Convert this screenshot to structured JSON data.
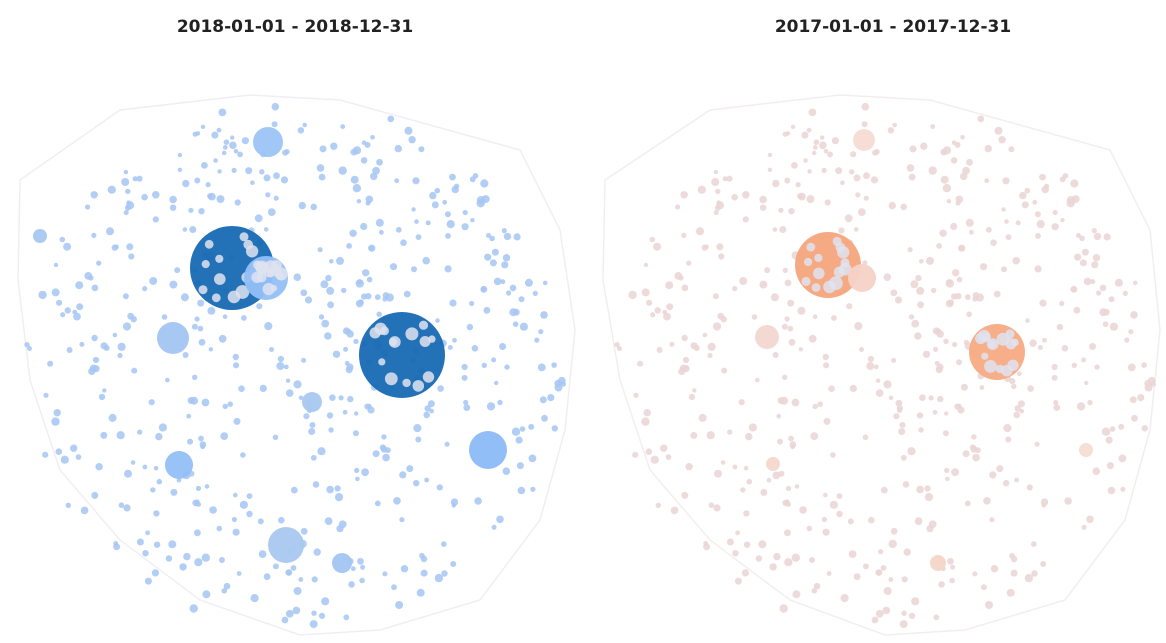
{
  "maps": [
    {
      "title": "2018-01-01 - 2018-12-31"
    },
    {
      "title": "2017-01-01 - 2017-12-31"
    }
  ]
}
